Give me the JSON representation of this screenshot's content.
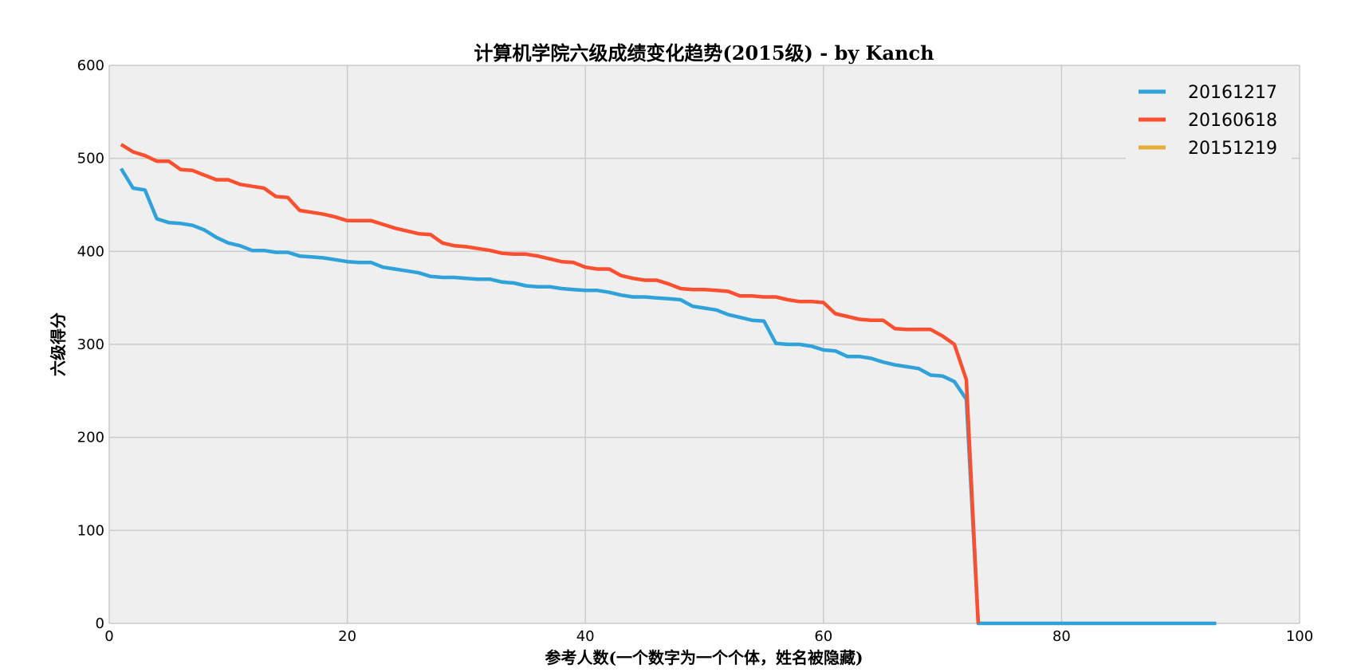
{
  "chart_data": {
    "type": "line",
    "title": "计算机学院六级成绩变化趋势(2015级) - by Kanch",
    "xlabel": "参考人数(一个数字为一个个体，姓名被隐藏)",
    "ylabel": "六级得分",
    "xlim": [
      0,
      100
    ],
    "ylim": [
      0,
      600
    ],
    "x_ticks": [
      "0",
      "20",
      "40",
      "60",
      "80",
      "100"
    ],
    "y_ticks": [
      "0",
      "100",
      "200",
      "300",
      "400",
      "500",
      "600"
    ],
    "grid": true,
    "legend_position": "top-right",
    "colors": {
      "background": "#efefef",
      "grid": "#cbcbcb",
      "s1": "#30a2da",
      "s2": "#fc4f30",
      "s3": "#e5ae38"
    },
    "series": [
      {
        "name": "20161217",
        "x": [
          1,
          2,
          3,
          4,
          5,
          6,
          7,
          8,
          9,
          10,
          11,
          12,
          13,
          14,
          15,
          16,
          17,
          18,
          19,
          20,
          21,
          22,
          23,
          24,
          25,
          26,
          27,
          28,
          29,
          30,
          31,
          32,
          33,
          34,
          35,
          36,
          37,
          38,
          39,
          40,
          41,
          42,
          43,
          44,
          45,
          46,
          47,
          48,
          49,
          50,
          51,
          52,
          53,
          54,
          55,
          56,
          57,
          58,
          59,
          60,
          61,
          62,
          63,
          64,
          65,
          66,
          67,
          68,
          69,
          70,
          71,
          72,
          73,
          74,
          75,
          76,
          77,
          78,
          79,
          80,
          81,
          82,
          83,
          84,
          85,
          86,
          87,
          88,
          89,
          90,
          91,
          92,
          93
        ],
        "values": [
          489,
          468,
          466,
          435,
          431,
          430,
          428,
          423,
          415,
          409,
          406,
          401,
          401,
          399,
          399,
          395,
          394,
          393,
          391,
          389,
          388,
          388,
          383,
          381,
          379,
          377,
          373,
          372,
          372,
          371,
          370,
          370,
          367,
          366,
          363,
          362,
          362,
          360,
          359,
          358,
          358,
          356,
          353,
          351,
          351,
          350,
          349,
          348,
          341,
          339,
          337,
          332,
          329,
          326,
          325,
          301,
          300,
          300,
          298,
          294,
          293,
          287,
          287,
          285,
          281,
          278,
          276,
          274,
          267,
          266,
          260,
          241,
          0,
          0,
          0,
          0,
          0,
          0,
          0,
          0,
          0,
          0,
          0,
          0,
          0,
          0,
          0,
          0,
          0,
          0,
          0,
          0,
          0
        ]
      },
      {
        "name": "20160618",
        "x": [
          1,
          2,
          3,
          4,
          5,
          6,
          7,
          8,
          9,
          10,
          11,
          12,
          13,
          14,
          15,
          16,
          17,
          18,
          19,
          20,
          21,
          22,
          23,
          24,
          25,
          26,
          27,
          28,
          29,
          30,
          31,
          32,
          33,
          34,
          35,
          36,
          37,
          38,
          39,
          40,
          41,
          42,
          43,
          44,
          45,
          46,
          47,
          48,
          49,
          50,
          51,
          52,
          53,
          54,
          55,
          56,
          57,
          58,
          59,
          60,
          61,
          62,
          63,
          64,
          65,
          66,
          67,
          68,
          69,
          70,
          71,
          72,
          73
        ],
        "values": [
          515,
          507,
          503,
          497,
          497,
          488,
          487,
          482,
          477,
          477,
          472,
          470,
          468,
          459,
          458,
          444,
          442,
          440,
          437,
          433,
          433,
          433,
          429,
          425,
          422,
          419,
          418,
          409,
          406,
          405,
          403,
          401,
          398,
          397,
          397,
          395,
          392,
          389,
          388,
          383,
          381,
          381,
          374,
          371,
          369,
          369,
          365,
          360,
          359,
          359,
          358,
          357,
          352,
          352,
          351,
          351,
          348,
          346,
          346,
          345,
          333,
          330,
          327,
          326,
          326,
          317,
          316,
          316,
          316,
          309,
          300,
          262,
          0
        ]
      },
      {
        "name": "20151219",
        "x": [],
        "values": []
      }
    ]
  }
}
